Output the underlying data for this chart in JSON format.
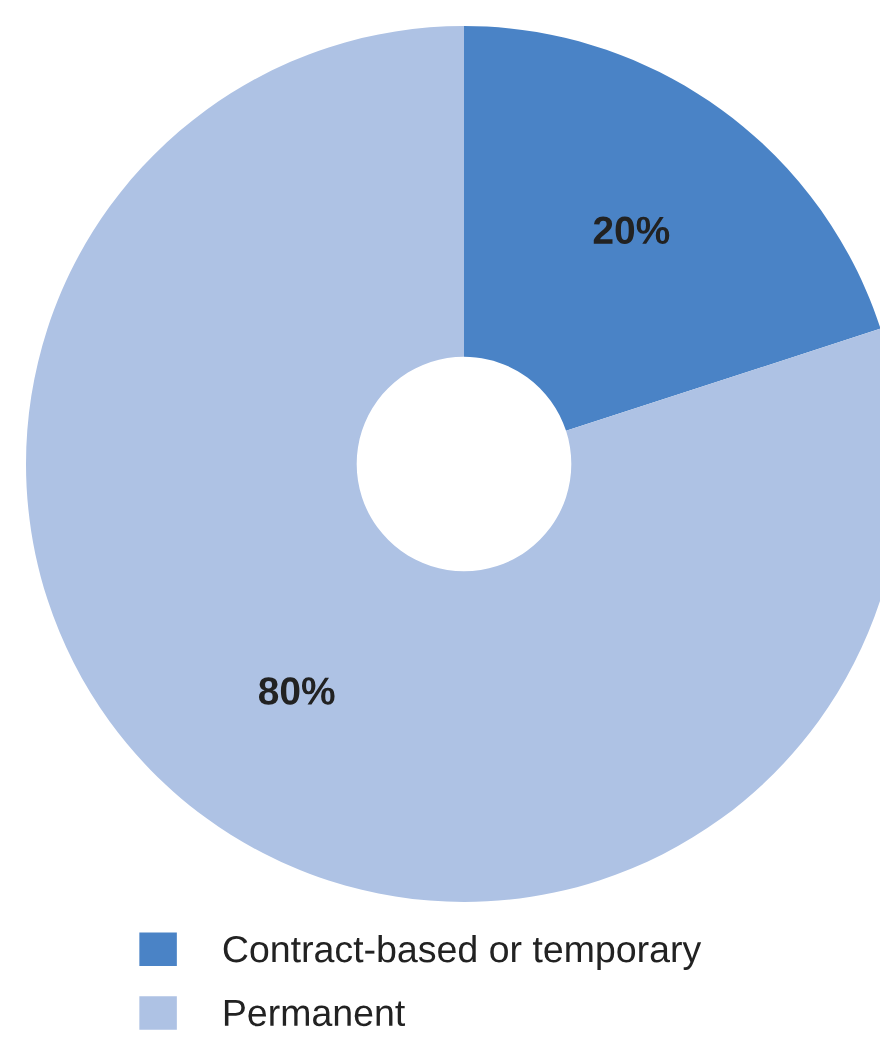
{
  "chart_data": {
    "type": "donut",
    "categories": [
      "Contract-based or temporary",
      "Permanent"
    ],
    "values": [
      20,
      80
    ],
    "colors": [
      "#4a83c6",
      "#aec2e4"
    ],
    "value_labels": [
      "20%",
      "80%"
    ],
    "legend": "bottom left"
  }
}
